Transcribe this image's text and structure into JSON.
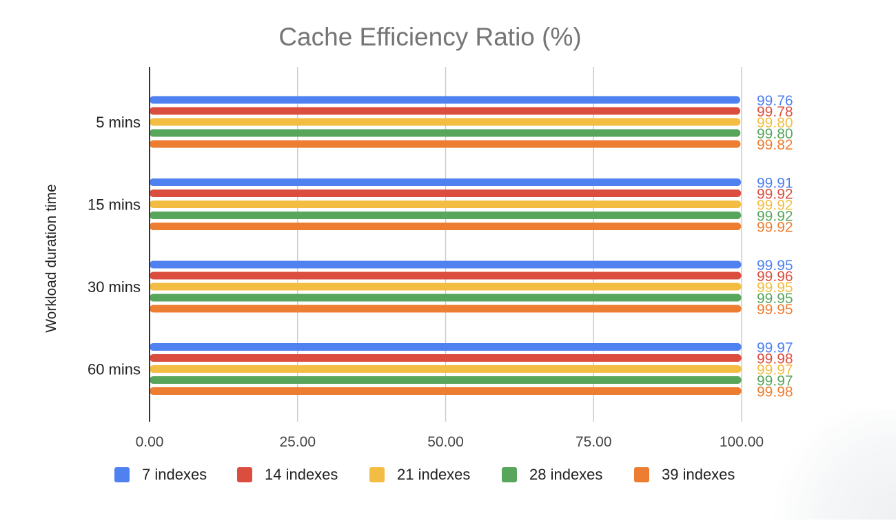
{
  "chart_data": {
    "type": "bar",
    "orientation": "horizontal",
    "title": "Cache Efficiency Ratio (%)",
    "xlabel": "",
    "ylabel": "Workload duration time",
    "xlim": [
      0,
      100
    ],
    "x_ticks": [
      0,
      25,
      50,
      75,
      100
    ],
    "x_tick_labels": [
      "0.00",
      "25.00",
      "50.00",
      "75.00",
      "100.00"
    ],
    "grid": true,
    "legend_position": "bottom",
    "categories": [
      "5 mins",
      "15 mins",
      "30 mins",
      "60 mins"
    ],
    "series": [
      {
        "name": "7 indexes",
        "color": "#4f81f0",
        "values": [
          99.76,
          99.91,
          99.95,
          99.97
        ],
        "labels": [
          "99.76",
          "99.91",
          "99.95",
          "99.97"
        ]
      },
      {
        "name": "14 indexes",
        "color": "#db4e3f",
        "values": [
          99.78,
          99.92,
          99.96,
          99.98
        ],
        "labels": [
          "99.78",
          "99.92",
          "99.96",
          "99.98"
        ]
      },
      {
        "name": "21 indexes",
        "color": "#f2bd42",
        "values": [
          99.8,
          99.92,
          99.95,
          99.97
        ],
        "labels": [
          "99.80",
          "99.92",
          "99.95",
          "99.97"
        ]
      },
      {
        "name": "28 indexes",
        "color": "#58a55c",
        "values": [
          99.8,
          99.92,
          99.95,
          99.97
        ],
        "labels": [
          "99.80",
          "99.92",
          "99.95",
          "99.97"
        ]
      },
      {
        "name": "39 indexes",
        "color": "#ed7d31",
        "values": [
          99.82,
          99.92,
          99.95,
          99.98
        ],
        "labels": [
          "99.82",
          "99.92",
          "99.95",
          "99.98"
        ]
      }
    ]
  }
}
